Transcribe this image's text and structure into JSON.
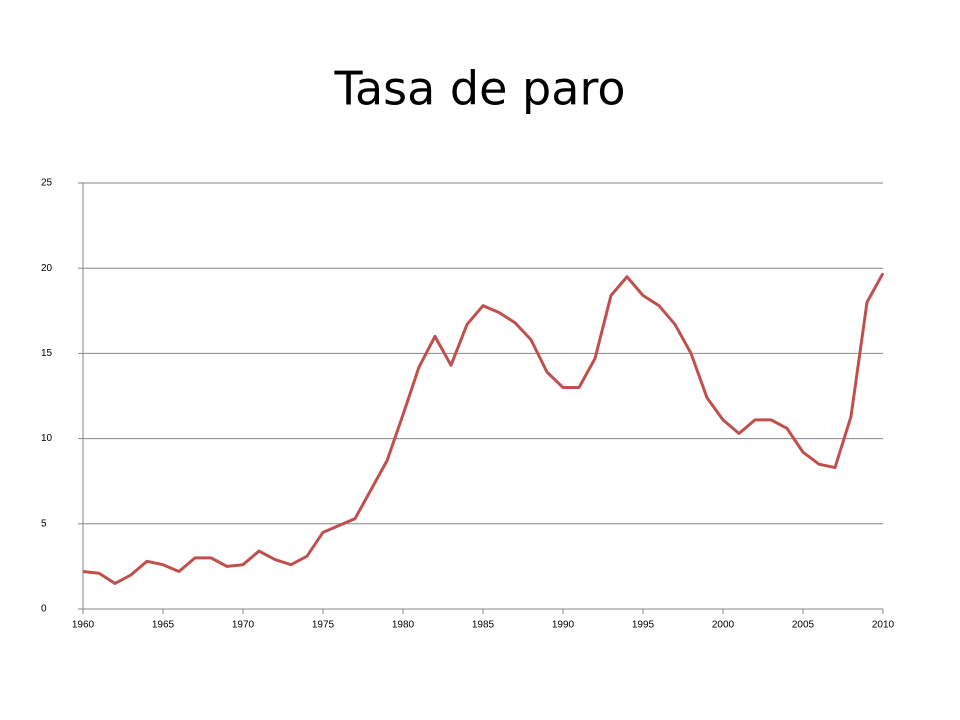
{
  "chart_data": {
    "type": "line",
    "title": "Tasa de paro",
    "x": [
      1960,
      1961,
      1962,
      1963,
      1964,
      1965,
      1966,
      1967,
      1968,
      1969,
      1970,
      1971,
      1972,
      1973,
      1974,
      1975,
      1976,
      1977,
      1978,
      1979,
      1980,
      1981,
      1982,
      1983,
      1984,
      1985,
      1986,
      1987,
      1988,
      1989,
      1990,
      1991,
      1992,
      1993,
      1994,
      1995,
      1996,
      1997,
      1998,
      1999,
      2000,
      2001,
      2002,
      2003,
      2004,
      2005,
      2006,
      2007,
      2008,
      2009,
      2010
    ],
    "series": [
      {
        "name": "Tasa de paro",
        "color": "#c0504d",
        "values": [
          2.2,
          2.1,
          1.5,
          2.0,
          2.8,
          2.6,
          2.2,
          3.0,
          3.0,
          2.5,
          2.6,
          3.4,
          2.9,
          2.6,
          3.1,
          4.5,
          4.9,
          5.3,
          7.0,
          8.7,
          11.4,
          14.2,
          16.0,
          14.3,
          16.7,
          17.8,
          17.4,
          16.8,
          15.8,
          13.9,
          13.0,
          13.0,
          14.7,
          18.4,
          19.5,
          18.4,
          17.8,
          16.7,
          15.0,
          12.4,
          11.1,
          10.3,
          11.1,
          11.1,
          10.6,
          9.2,
          8.5,
          8.3,
          11.3,
          18.0,
          19.7
        ]
      }
    ],
    "xlim": [
      1960,
      2010
    ],
    "xticks": [
      1960,
      1965,
      1970,
      1975,
      1980,
      1985,
      1990,
      1995,
      2000,
      2005,
      2010
    ],
    "ylim": [
      0,
      25
    ],
    "yticks": [
      0,
      5,
      10,
      15,
      20,
      25
    ],
    "grid": true
  }
}
